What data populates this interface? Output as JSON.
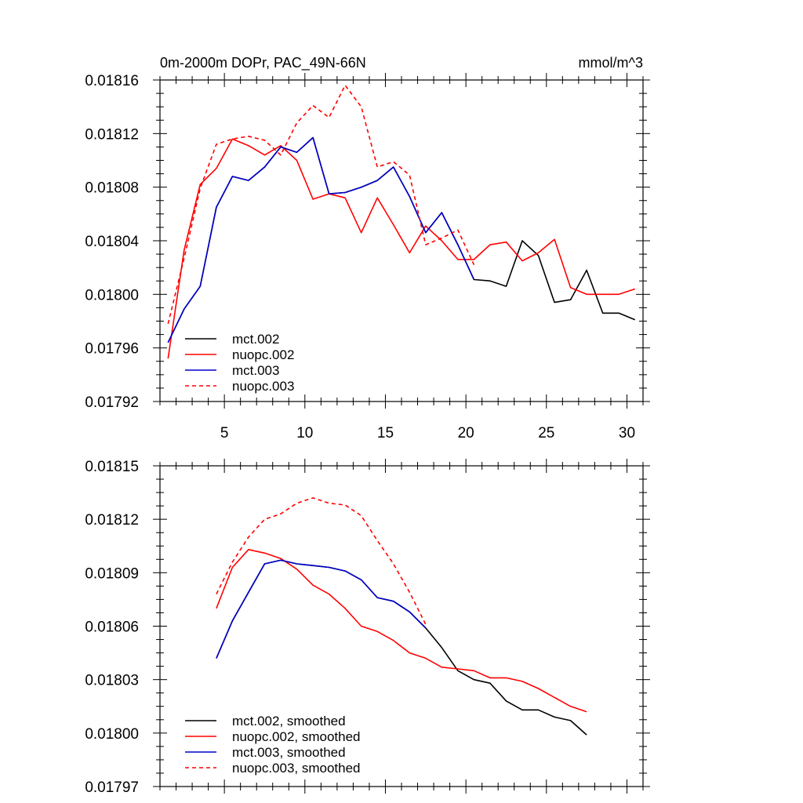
{
  "chart_data": [
    {
      "type": "line",
      "title": "0m-2000m DOPr, PAC_49N-66N",
      "units": "mmol/m^3",
      "xlim": [
        1,
        31
      ],
      "ylim": [
        0.01792,
        0.01816
      ],
      "x_ticks": [
        5,
        10,
        15,
        20,
        25,
        30
      ],
      "x_tick_labels": [
        "5",
        "10",
        "15",
        "20",
        "25",
        "30"
      ],
      "y_ticks": [
        0.01792,
        0.01796,
        0.018,
        0.01804,
        0.01808,
        0.01812,
        0.01816
      ],
      "y_tick_labels": [
        "0.01792",
        "0.01796",
        "0.01800",
        "0.01804",
        "0.01808",
        "0.01812",
        "0.01816"
      ],
      "legend_position": "bottom-left",
      "series": [
        {
          "name": "mct.002",
          "color": "#000000",
          "dash": "solid",
          "x": [
            1.5,
            2.5,
            3.5,
            4.5,
            5.5,
            6.5,
            7.5,
            8.5,
            9.5,
            10.5,
            11.5,
            12.5,
            13.5,
            14.5,
            15.5,
            16.5,
            17.5,
            18.5,
            19.5,
            20.5,
            21.5,
            22.5,
            23.5,
            24.5,
            25.5,
            26.5,
            27.5,
            28.5,
            29.5,
            30.5
          ],
          "values": [
            0.017964,
            0.017989,
            0.018006,
            0.018065,
            0.018088,
            0.018085,
            0.018095,
            0.01811,
            0.018106,
            0.018117,
            0.018075,
            0.018076,
            0.01808,
            0.018085,
            0.018095,
            0.018073,
            0.018046,
            0.018061,
            0.018037,
            0.018011,
            0.01801,
            0.018006,
            0.01804,
            0.018029,
            0.017994,
            0.017996,
            0.018018,
            0.017986,
            0.017986,
            0.017981
          ]
        },
        {
          "name": "nuopc.002",
          "color": "#ff0000",
          "dash": "solid",
          "x": [
            1.5,
            2.5,
            3.5,
            4.5,
            5.5,
            6.5,
            7.5,
            8.5,
            9.5,
            10.5,
            11.5,
            12.5,
            13.5,
            14.5,
            15.5,
            16.5,
            17.5,
            18.5,
            19.5,
            20.5,
            21.5,
            22.5,
            23.5,
            24.5,
            25.5,
            26.5,
            27.5,
            28.5,
            29.5,
            30.5
          ],
          "values": [
            0.017952,
            0.018033,
            0.018082,
            0.018094,
            0.018116,
            0.018111,
            0.018104,
            0.018111,
            0.0181,
            0.018071,
            0.018075,
            0.018072,
            0.018046,
            0.018072,
            0.018052,
            0.018031,
            0.018051,
            0.01804,
            0.018026,
            0.018026,
            0.018037,
            0.018039,
            0.018025,
            0.018031,
            0.018041,
            0.018005,
            0.018,
            0.018,
            0.018,
            0.018004
          ]
        },
        {
          "name": "mct.003",
          "color": "#0000cc",
          "dash": "solid",
          "x": [
            1.5,
            2.5,
            3.5,
            4.5,
            5.5,
            6.5,
            7.5,
            8.5,
            9.5,
            10.5,
            11.5,
            12.5,
            13.5,
            14.5,
            15.5,
            16.5,
            17.5,
            18.5,
            19.5,
            20.5
          ],
          "values": [
            0.017964,
            0.017989,
            0.018006,
            0.018065,
            0.018088,
            0.018085,
            0.018095,
            0.01811,
            0.018106,
            0.018117,
            0.018075,
            0.018076,
            0.01808,
            0.018085,
            0.018095,
            0.018073,
            0.018046,
            0.018061,
            0.018037,
            0.018011
          ]
        },
        {
          "name": "nuopc.003",
          "color": "#ff0000",
          "dash": "dashed",
          "x": [
            1.5,
            2.5,
            3.5,
            4.5,
            5.5,
            6.5,
            7.5,
            8.5,
            9.5,
            10.5,
            11.5,
            12.5,
            13.5,
            14.5,
            15.5,
            16.5,
            17.5,
            18.5,
            19.5,
            20.5
          ],
          "values": [
            0.017978,
            0.018027,
            0.018079,
            0.018112,
            0.018116,
            0.018118,
            0.018115,
            0.018104,
            0.018128,
            0.018141,
            0.018132,
            0.018156,
            0.01814,
            0.018095,
            0.018099,
            0.018089,
            0.018037,
            0.018042,
            0.018048,
            0.018022
          ]
        }
      ]
    },
    {
      "type": "line",
      "title": "",
      "xlim": [
        1,
        31
      ],
      "ylim": [
        0.01797,
        0.01815
      ],
      "x_ticks": [
        5,
        10,
        15,
        20,
        25,
        30
      ],
      "y_ticks": [
        0.01797,
        0.018,
        0.01803,
        0.01806,
        0.01809,
        0.01812,
        0.01815
      ],
      "y_tick_labels": [
        "0.01797",
        "0.01800",
        "0.01803",
        "0.01806",
        "0.01809",
        "0.01812",
        "0.01815"
      ],
      "legend_position": "bottom-left",
      "series": [
        {
          "name": "mct.002, smoothed",
          "color": "#000000",
          "dash": "solid",
          "x": [
            4.5,
            5.5,
            6.5,
            7.5,
            8.5,
            9.5,
            10.5,
            11.5,
            12.5,
            13.5,
            14.5,
            15.5,
            16.5,
            17.5,
            18.5,
            19.5,
            20.5,
            21.5,
            22.5,
            23.5,
            24.5,
            25.5,
            26.5,
            27.5
          ],
          "values": [
            0.018042,
            0.018063,
            0.018079,
            0.018095,
            0.018097,
            0.018095,
            0.018094,
            0.018093,
            0.018091,
            0.018086,
            0.018076,
            0.018074,
            0.018068,
            0.018059,
            0.018048,
            0.018035,
            0.01803,
            0.018028,
            0.018018,
            0.018013,
            0.018013,
            0.018009,
            0.018007,
            0.017999
          ]
        },
        {
          "name": "nuopc.002, smoothed",
          "color": "#ff0000",
          "dash": "solid",
          "x": [
            4.5,
            5.5,
            6.5,
            7.5,
            8.5,
            9.5,
            10.5,
            11.5,
            12.5,
            13.5,
            14.5,
            15.5,
            16.5,
            17.5,
            18.5,
            19.5,
            20.5,
            21.5,
            22.5,
            23.5,
            24.5,
            25.5,
            26.5,
            27.5
          ],
          "values": [
            0.01807,
            0.018093,
            0.018103,
            0.018101,
            0.018098,
            0.018092,
            0.018083,
            0.018078,
            0.01807,
            0.01806,
            0.018057,
            0.018052,
            0.018045,
            0.018042,
            0.018037,
            0.018036,
            0.018035,
            0.018031,
            0.018031,
            0.018029,
            0.018025,
            0.01802,
            0.018015,
            0.018012
          ]
        },
        {
          "name": "mct.003, smoothed",
          "color": "#0000cc",
          "dash": "solid",
          "x": [
            4.5,
            5.5,
            6.5,
            7.5,
            8.5,
            9.5,
            10.5,
            11.5,
            12.5,
            13.5,
            14.5,
            15.5,
            16.5,
            17.5
          ],
          "values": [
            0.018042,
            0.018063,
            0.018079,
            0.018095,
            0.018097,
            0.018095,
            0.018094,
            0.018093,
            0.018091,
            0.018086,
            0.018076,
            0.018074,
            0.018068,
            0.018059
          ]
        },
        {
          "name": "nuopc.003, smoothed",
          "color": "#ff0000",
          "dash": "dashed",
          "x": [
            4.5,
            5.5,
            6.5,
            7.5,
            8.5,
            9.5,
            10.5,
            11.5,
            12.5,
            13.5,
            14.5,
            15.5,
            16.5,
            17.5
          ],
          "values": [
            0.018078,
            0.018096,
            0.01811,
            0.01812,
            0.018123,
            0.018129,
            0.018132,
            0.018129,
            0.018128,
            0.018122,
            0.018108,
            0.018095,
            0.018079,
            0.018061
          ]
        }
      ]
    }
  ]
}
